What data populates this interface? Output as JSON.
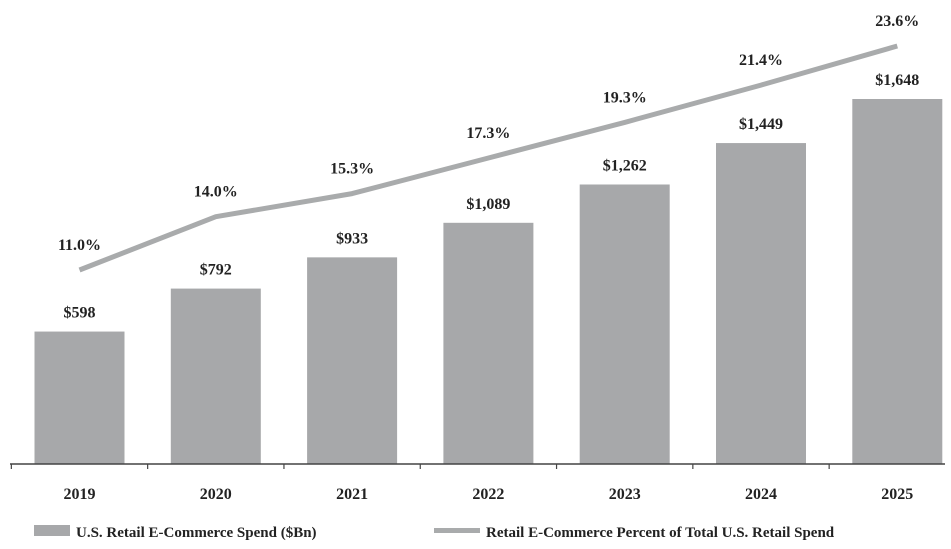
{
  "chart_data": {
    "type": "bar",
    "title": "",
    "xlabel": "",
    "ylabel": "",
    "categories": [
      "2019",
      "2020",
      "2021",
      "2022",
      "2023",
      "2024",
      "2025"
    ],
    "series": [
      {
        "name": "U.S. Retail E-Commerce Spend ($Bn)",
        "type": "bar",
        "values": [
          598,
          792,
          933,
          1089,
          1262,
          1449,
          1648
        ],
        "labels": [
          "$598",
          "$792",
          "$933",
          "$1,089",
          "$1,262",
          "$1,449",
          "$1,648"
        ]
      },
      {
        "name": "Retail E-Commerce Percent of Total U.S. Retail Spend",
        "type": "line",
        "values": [
          11.0,
          14.0,
          15.3,
          17.3,
          19.3,
          21.4,
          23.6
        ],
        "labels": [
          "11.0%",
          "14.0%",
          "15.3%",
          "17.3%",
          "19.3%",
          "21.4%",
          "23.6%"
        ]
      }
    ],
    "bar_axis_range": [
      0,
      1648
    ],
    "line_axis_range": [
      11.0,
      23.6
    ],
    "grid": false,
    "legend_position": "bottom",
    "colors": {
      "bar": "#a7a8aa",
      "line": "#a9abac",
      "axis": "#444444",
      "text": "#222222"
    }
  }
}
